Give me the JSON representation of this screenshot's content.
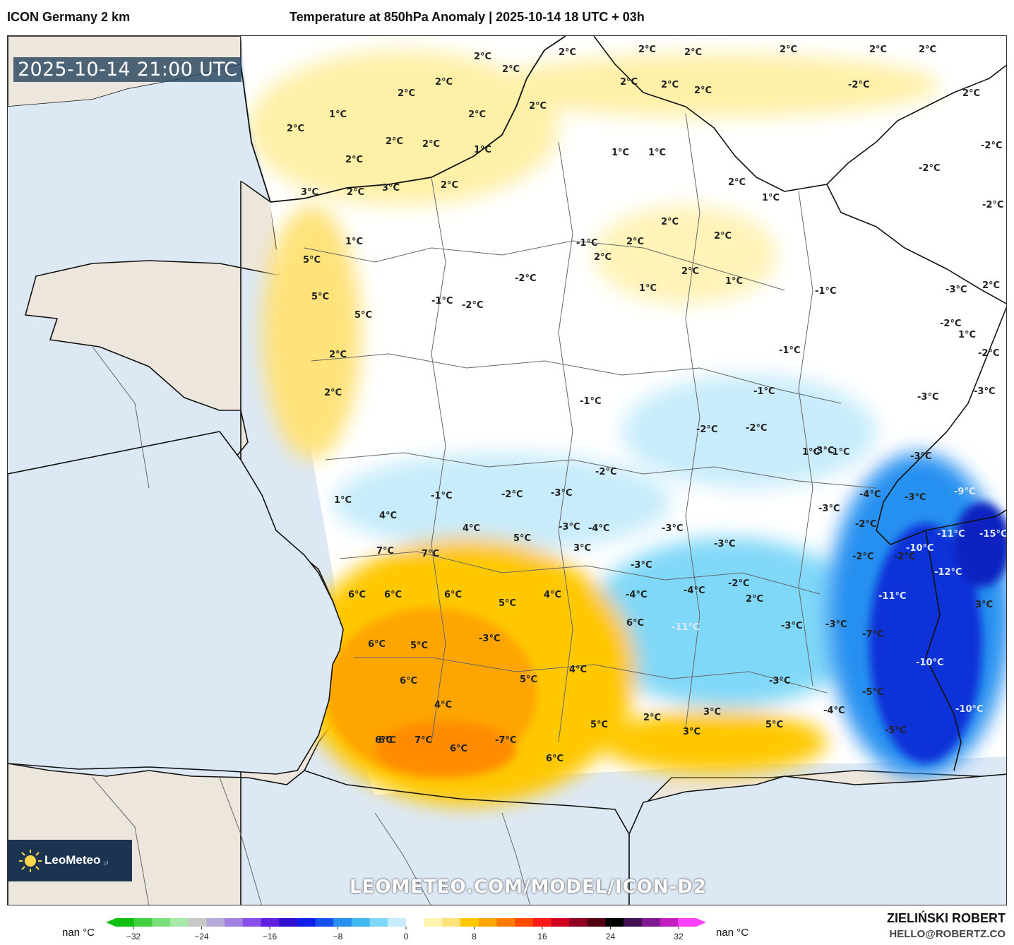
{
  "header": {
    "model": "ICON Germany 2 km",
    "title": "Temperature at 850hPa Anomaly | 2025-10-14 18 UTC + 03h"
  },
  "map": {
    "timestamp": "2025-10-14 21:00 UTC",
    "watermark": "LEOMETEO.COM/MODEL/ICON-D2",
    "logo": {
      "name": "LeoMeteo",
      "suffix": ".pl"
    },
    "colors": {
      "sea": "#dde8f5",
      "land": "#ece6dc",
      "border": "#111111"
    },
    "anomaly_labels": [
      "2°C",
      "2°C",
      "2°C",
      "2°C",
      "2°C",
      "2°C",
      "2°C",
      "2°C",
      "-2°C",
      "2°C",
      "2°C",
      "2°C",
      "2°C",
      "2°C",
      "2°C",
      "1°C",
      "2°C",
      "2°C",
      "2°C",
      "2°C",
      "2°C",
      "1°C",
      "1°C",
      "1°C",
      "2°C",
      "-2°C",
      "-2°C",
      "3°C",
      "2°C",
      "3°C",
      "2°C",
      "2°C",
      "1°C",
      "-2°C",
      "1°C",
      "2°C",
      "2°C",
      "-1°C",
      "2°C",
      "5°C",
      "2°C",
      "2°C",
      "1°C",
      "1°C",
      "-3°C",
      "2°C",
      "5°C",
      "-2°C",
      "5°C",
      "-1°C",
      "-2°C",
      "-1°C",
      "1°C",
      "-2°C",
      "2°C",
      "-2°C",
      "-1°C",
      "2°C",
      "-1°C",
      "-3°C",
      "-3°C",
      "-2°C",
      "-2°C",
      "-1°C",
      "-3°C",
      "1°C",
      "-1°C",
      "-3°C",
      "-2°C",
      "1°C",
      "-1°C",
      "-2°C",
      "-9°C",
      "-3°C",
      "-4°C",
      "-3°C",
      "4°C",
      "4°C",
      "-3°C",
      "-2°C",
      "-11°C",
      "-15°C",
      "5°C",
      "-4°C",
      "-3°C",
      "-3°C",
      "-10°C",
      "3°C",
      "7°C",
      "7°C",
      "-2°C",
      "-2°C",
      "-3°C",
      "-12°C",
      "4°C",
      "-3°C",
      "-2°C",
      "6°C",
      "6°C",
      "6°C",
      "-4°C",
      "-11°C",
      "3°C",
      "5°C",
      "-4°C",
      "-3°C",
      "-3°C",
      "2°C",
      "6°C",
      "6°C",
      "5°C",
      "-3°C",
      "-11°C",
      "-7°C",
      "-10°C",
      "4°C",
      "5°C",
      "-3°C",
      "6°C",
      "4°C",
      "-5°C",
      "-10°C",
      "6°C",
      "2°C",
      "3°C",
      "5°C",
      "-4°C",
      "3°C",
      "-5°C",
      "6°C",
      "7°C",
      "-7°C",
      "6°C",
      "6°C",
      "5°C"
    ]
  },
  "legend": {
    "ticks": [
      "-32",
      "-24",
      "-16",
      "-8",
      "0",
      "8",
      "16",
      "24",
      "32"
    ],
    "nan_left": "nan °C",
    "nan_right": "nan °C",
    "colors": [
      "#10c010",
      "#40d040",
      "#7ae07a",
      "#a8e8a8",
      "#c8c8c8",
      "#b8a8d8",
      "#a080e0",
      "#8850e8",
      "#6020e0",
      "#3010d0",
      "#1020e8",
      "#1850f0",
      "#2890f0",
      "#40b8f0",
      "#80d8f8",
      "#c8ecfb",
      "#ffffff",
      "#fff5b0",
      "#ffe27a",
      "#ffc800",
      "#ffa500",
      "#ff7a00",
      "#ff4a00",
      "#ff1a1a",
      "#d00020",
      "#900020",
      "#500010",
      "#000000",
      "#401050",
      "#801890",
      "#c020c0",
      "#ff40ff"
    ]
  },
  "footer": {
    "author": "ZIELIŃSKI ROBERT",
    "email": "HELLO@ROBERTZ.CO"
  }
}
